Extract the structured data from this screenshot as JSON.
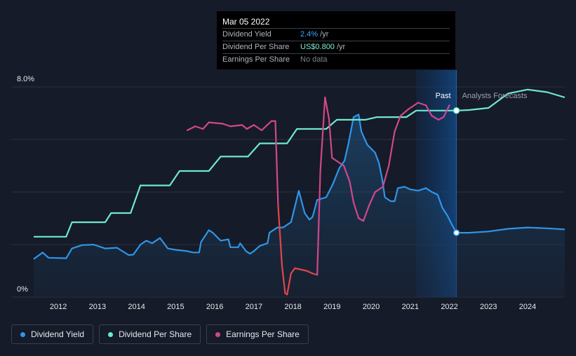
{
  "tooltip": {
    "date": "Mar 05 2022",
    "rows": [
      {
        "label": "Dividend Yield",
        "value": "2.4%",
        "unit": " /yr"
      },
      {
        "label": "Dividend Per Share",
        "value": "US$0.800",
        "unit": " /yr"
      },
      {
        "label": "Earnings Per Share",
        "value": "No data",
        "unit": ""
      }
    ]
  },
  "markers": {
    "past": "Past",
    "forecast": "Analysts Forecasts"
  },
  "legend": [
    {
      "label": "Dividend Yield",
      "color": "#2f95e8"
    },
    {
      "label": "Dividend Per Share",
      "color": "#6ee8cf"
    },
    {
      "label": "Earnings Per Share",
      "color": "#d1478b"
    }
  ],
  "chart_data": {
    "type": "line",
    "x_ticks": [
      "2012",
      "2013",
      "2014",
      "2015",
      "2016",
      "2017",
      "2018",
      "2019",
      "2020",
      "2021",
      "2022",
      "2023",
      "2024"
    ],
    "y_tick_labels": [
      "8.0%",
      "0%"
    ],
    "ylim": [
      0,
      8
    ],
    "xlim": [
      2011.37,
      2024.95
    ],
    "past_end": 2022.18,
    "grid": true,
    "legend_position": "bottom-left",
    "series": [
      {
        "name": "Dividend Yield",
        "color": "#2f95e8",
        "area": true,
        "points": [
          [
            2011.37,
            1.45
          ],
          [
            2011.6,
            1.7
          ],
          [
            2011.75,
            1.5
          ],
          [
            2012.2,
            1.48
          ],
          [
            2012.35,
            1.85
          ],
          [
            2012.6,
            1.98
          ],
          [
            2012.9,
            2.0
          ],
          [
            2013.2,
            1.85
          ],
          [
            2013.5,
            1.88
          ],
          [
            2013.8,
            1.6
          ],
          [
            2013.92,
            1.62
          ],
          [
            2014.1,
            2.0
          ],
          [
            2014.25,
            2.15
          ],
          [
            2014.4,
            2.05
          ],
          [
            2014.6,
            2.25
          ],
          [
            2014.8,
            1.85
          ],
          [
            2015.0,
            1.8
          ],
          [
            2015.3,
            1.75
          ],
          [
            2015.45,
            1.7
          ],
          [
            2015.6,
            1.7
          ],
          [
            2015.65,
            2.1
          ],
          [
            2015.85,
            2.55
          ],
          [
            2015.95,
            2.45
          ],
          [
            2016.15,
            2.15
          ],
          [
            2016.35,
            2.2
          ],
          [
            2016.4,
            1.9
          ],
          [
            2016.6,
            1.9
          ],
          [
            2016.65,
            2.05
          ],
          [
            2016.8,
            1.75
          ],
          [
            2016.9,
            1.65
          ],
          [
            2017.0,
            1.75
          ],
          [
            2017.15,
            1.95
          ],
          [
            2017.35,
            2.05
          ],
          [
            2017.4,
            2.45
          ],
          [
            2017.6,
            2.65
          ],
          [
            2017.75,
            2.65
          ],
          [
            2017.95,
            2.85
          ],
          [
            2018.15,
            4.05
          ],
          [
            2018.3,
            3.2
          ],
          [
            2018.42,
            2.95
          ],
          [
            2018.5,
            3.05
          ],
          [
            2018.62,
            3.7
          ],
          [
            2018.85,
            3.8
          ],
          [
            2019.02,
            4.3
          ],
          [
            2019.18,
            4.9
          ],
          [
            2019.32,
            5.2
          ],
          [
            2019.42,
            5.85
          ],
          [
            2019.55,
            6.85
          ],
          [
            2019.68,
            6.95
          ],
          [
            2019.75,
            6.3
          ],
          [
            2019.9,
            5.8
          ],
          [
            2020.1,
            5.5
          ],
          [
            2020.2,
            5.1
          ],
          [
            2020.28,
            4.5
          ],
          [
            2020.35,
            3.8
          ],
          [
            2020.5,
            3.65
          ],
          [
            2020.6,
            3.65
          ],
          [
            2020.68,
            4.15
          ],
          [
            2020.85,
            4.2
          ],
          [
            2021.0,
            4.1
          ],
          [
            2021.2,
            4.05
          ],
          [
            2021.4,
            4.15
          ],
          [
            2021.55,
            4.0
          ],
          [
            2021.7,
            3.9
          ],
          [
            2021.82,
            3.4
          ],
          [
            2021.95,
            3.1
          ],
          [
            2022.05,
            2.8
          ],
          [
            2022.18,
            2.45
          ],
          [
            2022.5,
            2.45
          ],
          [
            2023.0,
            2.5
          ],
          [
            2023.5,
            2.6
          ],
          [
            2024.0,
            2.65
          ],
          [
            2024.5,
            2.62
          ],
          [
            2024.95,
            2.58
          ]
        ]
      },
      {
        "name": "Dividend Per Share",
        "color": "#6ee8cf",
        "area": false,
        "points": [
          [
            2011.37,
            2.3
          ],
          [
            2012.2,
            2.3
          ],
          [
            2012.35,
            2.85
          ],
          [
            2013.2,
            2.85
          ],
          [
            2013.35,
            3.2
          ],
          [
            2013.85,
            3.2
          ],
          [
            2014.1,
            4.25
          ],
          [
            2014.85,
            4.25
          ],
          [
            2015.1,
            4.8
          ],
          [
            2015.85,
            4.8
          ],
          [
            2016.15,
            5.35
          ],
          [
            2016.85,
            5.35
          ],
          [
            2017.15,
            5.85
          ],
          [
            2017.85,
            5.85
          ],
          [
            2018.1,
            6.4
          ],
          [
            2018.85,
            6.4
          ],
          [
            2019.12,
            6.75
          ],
          [
            2019.85,
            6.75
          ],
          [
            2020.15,
            6.85
          ],
          [
            2020.9,
            6.85
          ],
          [
            2021.15,
            7.1
          ],
          [
            2022.18,
            7.1
          ],
          [
            2022.5,
            7.12
          ],
          [
            2023.0,
            7.2
          ],
          [
            2023.5,
            7.75
          ],
          [
            2024.0,
            7.9
          ],
          [
            2024.5,
            7.8
          ],
          [
            2024.95,
            7.6
          ]
        ]
      },
      {
        "name": "Earnings Per Share",
        "color": "#d1478b",
        "area": false,
        "segments": [
          [
            [
              2015.3,
              6.35
            ],
            [
              2015.5,
              6.5
            ],
            [
              2015.7,
              6.4
            ],
            [
              2015.85,
              6.65
            ],
            [
              2016.2,
              6.6
            ],
            [
              2016.4,
              6.5
            ],
            [
              2016.7,
              6.55
            ],
            [
              2016.82,
              6.4
            ],
            [
              2017.0,
              6.55
            ],
            [
              2017.2,
              6.35
            ],
            [
              2017.45,
              6.7
            ],
            [
              2017.55,
              6.7
            ],
            [
              2017.62,
              3.5
            ],
            [
              2017.72,
              1.2
            ],
            [
              2017.8,
              0.15
            ],
            [
              2017.85,
              0.1
            ],
            [
              2017.95,
              0.9
            ],
            [
              2018.05,
              1.1
            ],
            [
              2018.35,
              1.0
            ],
            [
              2018.5,
              0.9
            ],
            [
              2018.62,
              0.85
            ],
            [
              2018.7,
              4.8
            ],
            [
              2018.82,
              7.6
            ],
            [
              2018.92,
              6.8
            ],
            [
              2019.0,
              5.3
            ],
            [
              2019.3,
              5.0
            ],
            [
              2019.45,
              4.4
            ],
            [
              2019.55,
              3.6
            ],
            [
              2019.68,
              3.0
            ],
            [
              2019.8,
              2.9
            ],
            [
              2019.95,
              3.5
            ],
            [
              2020.1,
              4.0
            ],
            [
              2020.3,
              4.2
            ],
            [
              2020.45,
              5.0
            ],
            [
              2020.6,
              6.3
            ],
            [
              2020.75,
              6.9
            ],
            [
              2020.95,
              7.15
            ],
            [
              2021.2,
              7.4
            ],
            [
              2021.4,
              7.3
            ],
            [
              2021.55,
              6.9
            ],
            [
              2021.72,
              6.75
            ],
            [
              2021.85,
              6.85
            ],
            [
              2022.0,
              7.3
            ]
          ]
        ]
      }
    ]
  }
}
